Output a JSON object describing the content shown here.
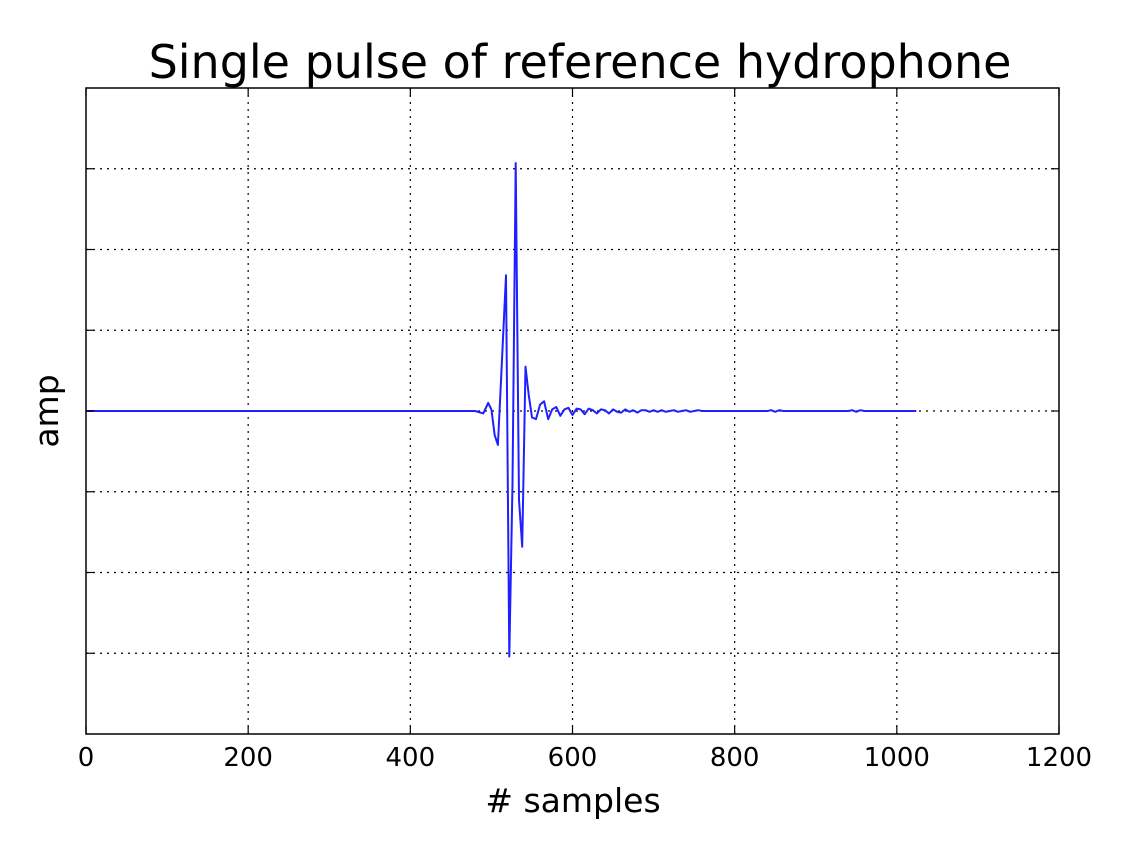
{
  "colors": {
    "series": "#1f1fff"
  },
  "chart_data": {
    "type": "line",
    "title": "Single pulse of reference hydrophone",
    "xlabel": "# samples",
    "ylabel": "amp",
    "xlim": [
      0,
      1200
    ],
    "ylim": [
      -4,
      4
    ],
    "xticks": [
      0,
      200,
      400,
      600,
      800,
      1000,
      1200
    ],
    "xtick_labels": [
      "0",
      "200",
      "400",
      "600",
      "800",
      "1000",
      "1200"
    ],
    "yticks": [
      -3,
      -2,
      -1,
      0,
      1,
      2,
      3
    ],
    "ytick_labels": [
      "",
      "",
      "",
      "",
      "",
      "",
      ""
    ],
    "grid": true,
    "series": [
      {
        "x": [
          0,
          480,
          490,
          496,
          500,
          504,
          508,
          512,
          518,
          522,
          526,
          530,
          534,
          538,
          542,
          546,
          550,
          555,
          560,
          565,
          570,
          575,
          580,
          585,
          590,
          595,
          600,
          605,
          610,
          615,
          620,
          625,
          630,
          635,
          640,
          645,
          650,
          655,
          660,
          665,
          670,
          675,
          680,
          685,
          690,
          695,
          700,
          705,
          710,
          715,
          720,
          725,
          730,
          735,
          740,
          745,
          750,
          755,
          760,
          800,
          840,
          845,
          850,
          855,
          860,
          940,
          945,
          950,
          955,
          960,
          1024
        ],
        "y": [
          0,
          0,
          -0.03,
          0.1,
          0.02,
          -0.3,
          -0.42,
          0.4,
          1.68,
          -3.04,
          -0.9,
          3.07,
          -1.1,
          -1.68,
          0.55,
          0.2,
          -0.08,
          -0.1,
          0.08,
          0.12,
          -0.1,
          0.02,
          0.05,
          -0.06,
          0.02,
          0.04,
          -0.05,
          0.03,
          0.02,
          -0.04,
          0.03,
          0.01,
          -0.03,
          0.02,
          0.01,
          -0.03,
          0.02,
          -0.01,
          -0.02,
          0.02,
          -0.01,
          0.01,
          -0.02,
          0.01,
          0.01,
          -0.01,
          0.01,
          -0.01,
          0.01,
          -0.01,
          0.0,
          0.01,
          -0.01,
          0.0,
          0.01,
          -0.01,
          0.0,
          0.01,
          0.0,
          0.0,
          0.0,
          0.01,
          -0.01,
          0.01,
          0.0,
          0.0,
          0.01,
          -0.01,
          0.01,
          0.0,
          0.0
        ]
      }
    ]
  }
}
